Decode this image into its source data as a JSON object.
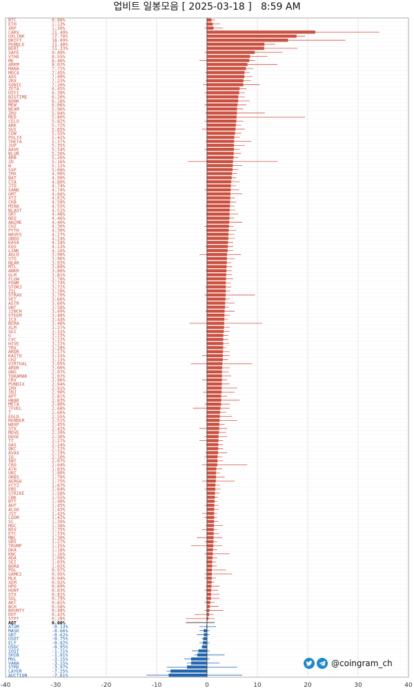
{
  "title": "업비트 일봉모음 [ 2025-03-18 ]   8:59 AM",
  "watermark": {
    "text": "@coingram_ch",
    "icons": [
      "twitter-icon",
      "telegram-icon"
    ]
  },
  "colors": {
    "positive": "#cc5040",
    "negative": "#2266b0",
    "zero": "#000000",
    "grid": "#d8d8d8"
  },
  "chart_data": {
    "type": "bar",
    "orientation": "horizontal",
    "xlim": [
      -40,
      40
    ],
    "xticks": [
      -40,
      -30,
      -20,
      -10,
      0,
      10,
      20,
      30,
      40
    ],
    "grid": true,
    "rows": [
      {
        "name": "BTC",
        "value": 0.88,
        "hi": 1.6,
        "lo": 0.2
      },
      {
        "name": "ETH",
        "value": 1.13,
        "hi": 2.6,
        "lo": -0.3
      },
      {
        "name": "XRP",
        "value": 1.3,
        "hi": 3.2,
        "lo": -0.5
      },
      {
        "name": "CARV",
        "value": 21.49,
        "hi": 34.2,
        "lo": 2
      },
      {
        "name": "UXLINK",
        "value": 17.78,
        "hi": 19.5,
        "lo": 1
      },
      {
        "name": "DRIFT",
        "value": 16.09,
        "hi": 27.5,
        "lo": 2
      },
      {
        "name": "PENDLE",
        "value": 11.4,
        "hi": 13.5,
        "lo": 1
      },
      {
        "name": "BERT",
        "value": 11.33,
        "hi": 18,
        "lo": 0.5
      },
      {
        "name": "SAFE",
        "value": 9.49,
        "hi": 15,
        "lo": -0.5
      },
      {
        "name": "VTHO",
        "value": 8.55,
        "hi": 12,
        "lo": 1
      },
      {
        "name": "ME",
        "value": 8.4,
        "hi": 9.5,
        "lo": -1.5
      },
      {
        "name": "ARKM",
        "value": 8.02,
        "hi": 14,
        "lo": 0
      },
      {
        "name": "MANA",
        "value": 7.71,
        "hi": 9.2,
        "lo": 0.5
      },
      {
        "name": "MOCA",
        "value": 7.45,
        "hi": 8.5,
        "lo": -0.4
      },
      {
        "name": "AXS",
        "value": 7.4,
        "hi": 9,
        "lo": 0.2
      },
      {
        "name": "ZRX",
        "value": 7.23,
        "hi": 8.7,
        "lo": -0.3
      },
      {
        "name": "SONIC",
        "value": 7.2,
        "hi": 10.5,
        "lo": -0.8
      },
      {
        "name": "ZETA",
        "value": 6.45,
        "hi": 7.8,
        "lo": 0.2
      },
      {
        "name": "HIFI",
        "value": 6.38,
        "hi": 7.5,
        "lo": -0.5
      },
      {
        "name": "BIGTIME",
        "value": 6.2,
        "hi": 7.5,
        "lo": -0.2
      },
      {
        "name": "BONK",
        "value": 6.18,
        "hi": 8.5,
        "lo": -0.2
      },
      {
        "name": "MEW",
        "value": 6.06,
        "hi": 7.8,
        "lo": -0.5
      },
      {
        "name": "BEAM",
        "value": 5.96,
        "hi": 7.2,
        "lo": 0.2
      },
      {
        "name": "ZRO",
        "value": 5.94,
        "hi": 11.5,
        "lo": -0.3
      },
      {
        "name": "MED",
        "value": 5.86,
        "hi": 19.5,
        "lo": 0
      },
      {
        "name": "CELO",
        "value": 5.82,
        "hi": 7.2,
        "lo": -0.5
      },
      {
        "name": "ARK",
        "value": 5.72,
        "hi": 6.8,
        "lo": 0.5
      },
      {
        "name": "SUI",
        "value": 5.65,
        "hi": 7.5,
        "lo": -1
      },
      {
        "name": "COW",
        "value": 5.55,
        "hi": 6.8,
        "lo": 0
      },
      {
        "name": "POLYX",
        "value": 5.42,
        "hi": 6.5,
        "lo": 0.5
      },
      {
        "name": "THETA",
        "value": 5.37,
        "hi": 8.8,
        "lo": -0.3
      },
      {
        "name": "JUP",
        "value": 5.35,
        "hi": 7.5,
        "lo": 0
      },
      {
        "name": "AAVE",
        "value": 5.34,
        "hi": 6.5,
        "lo": -0.5
      },
      {
        "name": "BLUR",
        "value": 5.3,
        "hi": 6.8,
        "lo": 0
      },
      {
        "name": "ARB",
        "value": 5.26,
        "hi": 6.2,
        "lo": 0.2
      },
      {
        "name": "ID",
        "value": 5.16,
        "hi": 14,
        "lo": -3.8
      },
      {
        "name": "W",
        "value": 5.12,
        "hi": 7,
        "lo": 0
      },
      {
        "name": "SXP",
        "value": 5.08,
        "hi": 6.2,
        "lo": 0.5
      },
      {
        "name": "IMX",
        "value": 4.96,
        "hi": 6,
        "lo": 0.3
      },
      {
        "name": "BAT",
        "value": 4.9,
        "hi": 5.8,
        "lo": 0.3
      },
      {
        "name": "CTA",
        "value": 4.8,
        "hi": 6.5,
        "lo": -0.2
      },
      {
        "name": "JTO",
        "value": 4.74,
        "hi": 5.8,
        "lo": 0.2
      },
      {
        "name": "SAND",
        "value": 4.7,
        "hi": 6.4,
        "lo": -0.5
      },
      {
        "name": "GMT",
        "value": 4.66,
        "hi": 7,
        "lo": 0.2
      },
      {
        "name": "XTZ",
        "value": 4.62,
        "hi": 5.5,
        "lo": 0
      },
      {
        "name": "CKB",
        "value": 4.58,
        "hi": 5.8,
        "lo": 0.5
      },
      {
        "name": "MINA",
        "value": 4.55,
        "hi": 5.5,
        "lo": -0.3
      },
      {
        "name": "BLAST",
        "value": 4.51,
        "hi": 5.6,
        "lo": 0.2
      },
      {
        "name": "GRT",
        "value": 4.48,
        "hi": 6.2,
        "lo": -0.2
      },
      {
        "name": "NEO",
        "value": 4.46,
        "hi": 5.4,
        "lo": 0
      },
      {
        "name": "ANIME",
        "value": 4.4,
        "hi": 7,
        "lo": 0.2
      },
      {
        "name": "CHZ",
        "value": 4.36,
        "hi": 5.2,
        "lo": -0.5
      },
      {
        "name": "PYTH",
        "value": 4.3,
        "hi": 5.8,
        "lo": -0.2
      },
      {
        "name": "WAVES",
        "value": 4.27,
        "hi": 5.4,
        "lo": 0.3
      },
      {
        "name": "ONDO",
        "value": 4.24,
        "hi": 5.5,
        "lo": 0.3
      },
      {
        "name": "KAVA",
        "value": 4.18,
        "hi": 5.2,
        "lo": 0
      },
      {
        "name": "EOS",
        "value": 4.13,
        "hi": 5.2,
        "lo": -0.3
      },
      {
        "name": "LINK",
        "value": 4.1,
        "hi": 5.2,
        "lo": 0.3
      },
      {
        "name": "AGLD",
        "value": 3.98,
        "hi": 6.8,
        "lo": -1.5
      },
      {
        "name": "STG",
        "value": 3.96,
        "hi": 5.5,
        "lo": 0
      },
      {
        "name": "NEAR",
        "value": 3.93,
        "hi": 4.8,
        "lo": 0.5
      },
      {
        "name": "MTL",
        "value": 3.89,
        "hi": 5,
        "lo": 0
      },
      {
        "name": "ANKR",
        "value": 3.86,
        "hi": 4.9,
        "lo": -0.3
      },
      {
        "name": "GLM",
        "value": 3.81,
        "hi": 5,
        "lo": 0.2
      },
      {
        "name": "FLOW",
        "value": 3.78,
        "hi": 5.2,
        "lo": -0.2
      },
      {
        "name": "POWR",
        "value": 3.74,
        "hi": 4.7,
        "lo": 0.3
      },
      {
        "name": "STORJ",
        "value": 3.72,
        "hi": 4.8,
        "lo": -0.3
      },
      {
        "name": "ZIL",
        "value": 3.7,
        "hi": 4.6,
        "lo": 0
      },
      {
        "name": "STRAX",
        "value": 3.7,
        "hi": 9.5,
        "lo": -0.5
      },
      {
        "name": "VET",
        "value": 3.66,
        "hi": 4.5,
        "lo": 0.2
      },
      {
        "name": "ASTR",
        "value": 3.6,
        "hi": 5.5,
        "lo": 0
      },
      {
        "name": "ONT",
        "value": 3.58,
        "hi": 4.4,
        "lo": 0.2
      },
      {
        "name": "1INCH",
        "value": 3.49,
        "hi": 5.5,
        "lo": -0.3
      },
      {
        "name": "STEEM",
        "value": 3.46,
        "hi": 4.5,
        "lo": 0.5
      },
      {
        "name": "ICX",
        "value": 3.44,
        "hi": 4.2,
        "lo": 0
      },
      {
        "name": "BERA",
        "value": 3.4,
        "hi": 11,
        "lo": -3.5
      },
      {
        "name": "XLM",
        "value": 3.37,
        "hi": 4.5,
        "lo": 0.2
      },
      {
        "name": "SEI",
        "value": 3.32,
        "hi": 4.5,
        "lo": -0.2
      },
      {
        "name": "G",
        "value": 3.23,
        "hi": 4.2,
        "lo": 0.5
      },
      {
        "name": "CVC",
        "value": 3.22,
        "hi": 4.2,
        "lo": -0.2
      },
      {
        "name": "HIVE",
        "value": 3.22,
        "hi": 4.4,
        "lo": 0.3
      },
      {
        "name": "TRX",
        "value": 3.2,
        "hi": 3.8,
        "lo": 1
      },
      {
        "name": "ARDR",
        "value": 3.17,
        "hi": 4.5,
        "lo": 0
      },
      {
        "name": "KAITO",
        "value": 3.15,
        "hi": 4.5,
        "lo": -1
      },
      {
        "name": "CHZ",
        "value": 3.13,
        "hi": 4.2,
        "lo": 0
      },
      {
        "name": "VIRTUAL",
        "value": 3.05,
        "hi": 9,
        "lo": -3.2
      },
      {
        "name": "ARDR",
        "value": 3,
        "hi": 4.5,
        "lo": 0
      },
      {
        "name": "ONG",
        "value": 2.97,
        "hi": 4.3,
        "lo": -0.2
      },
      {
        "name": "TOKAMAK",
        "value": 2.97,
        "hi": 4.8,
        "lo": 0
      },
      {
        "name": "CRV",
        "value": 2.96,
        "hi": 4,
        "lo": -1
      },
      {
        "name": "PUNDIX",
        "value": 2.94,
        "hi": 4.5,
        "lo": 0.3
      },
      {
        "name": "IMX",
        "value": 2.91,
        "hi": 6,
        "lo": 0
      },
      {
        "name": "INJ",
        "value": 2.9,
        "hi": 5.5,
        "lo": -0.8
      },
      {
        "name": "APT",
        "value": 2.81,
        "hi": 4,
        "lo": -0.2
      },
      {
        "name": "HBAR",
        "value": 2.83,
        "hi": 6.5,
        "lo": 0
      },
      {
        "name": "META",
        "value": 2.8,
        "hi": 4.5,
        "lo": -0.5
      },
      {
        "name": "TFUEL",
        "value": 2.68,
        "hi": 4.5,
        "lo": -2.8
      },
      {
        "name": "T",
        "value": 2.6,
        "hi": 3.8,
        "lo": 0.3
      },
      {
        "name": "EGLD",
        "value": 2.55,
        "hi": 5,
        "lo": -0.2
      },
      {
        "name": "RENDER",
        "value": 2.51,
        "hi": 6,
        "lo": -0.3
      },
      {
        "name": "WAXP",
        "value": 2.45,
        "hi": 3.5,
        "lo": 0
      },
      {
        "name": "STX",
        "value": 2.42,
        "hi": 4,
        "lo": -1.5
      },
      {
        "name": "MOVE",
        "value": 2.39,
        "hi": 3.8,
        "lo": -0.2
      },
      {
        "name": "DOGE",
        "value": 2.3,
        "hi": 4,
        "lo": -0.5
      },
      {
        "name": "TT",
        "value": 2.27,
        "hi": 3.2,
        "lo": -1.5
      },
      {
        "name": "GAS",
        "value": 2.24,
        "hi": 3.2,
        "lo": -0.2
      },
      {
        "name": "QKC",
        "value": 2.22,
        "hi": 3.2,
        "lo": 0
      },
      {
        "name": "AVAX",
        "value": 2.19,
        "hi": 4,
        "lo": -0.3
      },
      {
        "name": "IQ",
        "value": 2.1,
        "hi": 3,
        "lo": -0.5
      },
      {
        "name": "SNT",
        "value": 2.07,
        "hi": 3.2,
        "lo": 0.2
      },
      {
        "name": "CRO",
        "value": 2.04,
        "hi": 8,
        "lo": -1
      },
      {
        "name": "ATH",
        "value": 1.83,
        "hi": 3,
        "lo": -0.2
      },
      {
        "name": "UNI",
        "value": 1.8,
        "hi": 2.6,
        "lo": 0.5
      },
      {
        "name": "ORBS",
        "value": 1.78,
        "hi": 3.5,
        "lo": 0
      },
      {
        "name": "AERGO",
        "value": 1.75,
        "hi": 5.5,
        "lo": -1
      },
      {
        "name": "FCT2",
        "value": 1.67,
        "hi": 2.6,
        "lo": 0
      },
      {
        "name": "ENS",
        "value": 1.64,
        "hi": 2.7,
        "lo": -0.5
      },
      {
        "name": "STRIKE",
        "value": 1.58,
        "hi": 2.5,
        "lo": 0
      },
      {
        "name": "CBK",
        "value": 1.55,
        "hi": 2.2,
        "lo": 0.3
      },
      {
        "name": "BTT",
        "value": 1.48,
        "hi": 2,
        "lo": 0.5
      },
      {
        "name": "AHT",
        "value": 1.45,
        "hi": 2.3,
        "lo": -0.5
      },
      {
        "name": "ALGO",
        "value": 1.43,
        "hi": 2.3,
        "lo": 0
      },
      {
        "name": "JST",
        "value": 1.42,
        "hi": 2,
        "lo": -1
      },
      {
        "name": "LOOM",
        "value": 1.42,
        "hi": 2,
        "lo": -0.5
      },
      {
        "name": "SC",
        "value": 1.39,
        "hi": 2.2,
        "lo": 0.2
      },
      {
        "name": "MOC",
        "value": 1.38,
        "hi": 3.2,
        "lo": -0.3
      },
      {
        "name": "BSV",
        "value": 1.35,
        "hi": 2,
        "lo": -1
      },
      {
        "name": "ETC",
        "value": 1.33,
        "hi": 2.4,
        "lo": 0
      },
      {
        "name": "MBL",
        "value": 1.3,
        "hi": 3,
        "lo": -2
      },
      {
        "name": "GRS",
        "value": 1.27,
        "hi": 2,
        "lo": -0.5
      },
      {
        "name": "TRUMP",
        "value": 1.25,
        "hi": 3,
        "lo": -3.2
      },
      {
        "name": "DKA",
        "value": 1.18,
        "hi": 2,
        "lo": 0
      },
      {
        "name": "KNC",
        "value": 1.16,
        "hi": 4.5,
        "lo": -0.5
      },
      {
        "name": "ADA",
        "value": 1.08,
        "hi": 2,
        "lo": 0
      },
      {
        "name": "SEI",
        "value": 1.03,
        "hi": 1.8,
        "lo": -0.2
      },
      {
        "name": "BORA",
        "value": 1.02,
        "hi": 2,
        "lo": 0
      },
      {
        "name": "POL",
        "value": 0.97,
        "hi": 3.8,
        "lo": -0.3
      },
      {
        "name": "GAME2",
        "value": 0.95,
        "hi": 5,
        "lo": -0.5
      },
      {
        "name": "MLK",
        "value": 0.94,
        "hi": 1.8,
        "lo": -0.5
      },
      {
        "name": "XEM",
        "value": 0.92,
        "hi": 1.5,
        "lo": 0
      },
      {
        "name": "HPO",
        "value": 0.89,
        "hi": 2.5,
        "lo": -0.2
      },
      {
        "name": "HUNT",
        "value": 0.83,
        "hi": 2.2,
        "lo": -0.5
      },
      {
        "name": "STX",
        "value": 0.81,
        "hi": 2.5,
        "lo": 0
      },
      {
        "name": "SOL",
        "value": 0.79,
        "hi": 2.5,
        "lo": -0.3
      },
      {
        "name": "AKT",
        "value": 0.65,
        "hi": 1.5,
        "lo": -0.5
      },
      {
        "name": "BCH",
        "value": 0.58,
        "hi": 2.3,
        "lo": 0
      },
      {
        "name": "BOUNTY",
        "value": 0.48,
        "hi": 3.2,
        "lo": -0.5
      },
      {
        "name": "DOT",
        "value": 0.42,
        "hi": 1.3,
        "lo": -2.5
      },
      {
        "name": "STPT",
        "value": 0.28,
        "hi": 1.5,
        "lo": -4.2
      },
      {
        "name": "AQT",
        "value": 0,
        "hi": 1.5,
        "lo": -4.2
      },
      {
        "name": "ATOM",
        "value": -0.13,
        "hi": 1.8,
        "lo": -1.5
      },
      {
        "name": "MASK",
        "value": -0.66,
        "hi": 0.5,
        "lo": -1.5
      },
      {
        "name": "GRT",
        "value": -0.62,
        "hi": 0.5,
        "lo": -2
      },
      {
        "name": "USDT",
        "value": -0.75,
        "hi": 0,
        "lo": -1
      },
      {
        "name": "ELF",
        "value": -0.82,
        "hi": 0.5,
        "lo": -1.5
      },
      {
        "name": "USDC",
        "value": -0.95,
        "hi": 0,
        "lo": -1.2
      },
      {
        "name": "IOST",
        "value": -1.71,
        "hi": 0.5,
        "lo": -3
      },
      {
        "name": "SHIB",
        "value": -1.91,
        "hi": 3.5,
        "lo": -2.5
      },
      {
        "name": "MVL",
        "value": -3.15,
        "hi": 0.5,
        "lo": -4.5
      },
      {
        "name": "VANA",
        "value": -3.15,
        "hi": 2.5,
        "lo": -4
      },
      {
        "name": "STMX",
        "value": -3.97,
        "hi": 6,
        "lo": -8
      },
      {
        "name": "LAYER",
        "value": -7.25,
        "hi": -2,
        "lo": -8
      },
      {
        "name": "AUCTION",
        "value": -7.61,
        "hi": 7,
        "lo": -12
      }
    ]
  }
}
